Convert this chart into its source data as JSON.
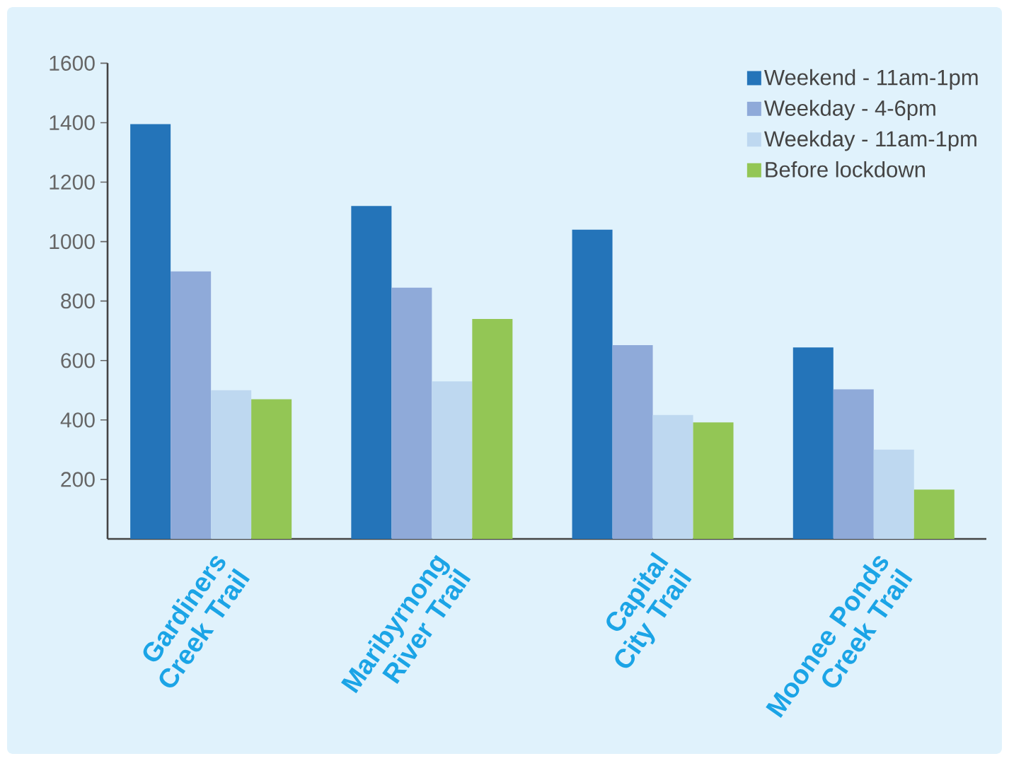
{
  "chart_data": {
    "type": "bar",
    "categories": [
      "Gardiners Creek Trail",
      "Maribyrnong River Trail",
      "Capital City Trail",
      "Moonee Ponds Creek Trail"
    ],
    "series": [
      {
        "name": "Weekend - 11am-1pm",
        "color": "#2474b9",
        "values": [
          1395,
          1120,
          1040,
          644
        ]
      },
      {
        "name": "Weekday - 4-6pm",
        "color": "#8faad9",
        "values": [
          900,
          845,
          652,
          503
        ]
      },
      {
        "name": "Weekday - 11am-1pm",
        "color": "#bed8f0",
        "values": [
          500,
          530,
          417,
          300
        ]
      },
      {
        "name": "Before lockdown",
        "color": "#93c655",
        "values": [
          470,
          740,
          392,
          166
        ]
      }
    ],
    "ylim": [
      0,
      1600
    ],
    "yticks": [
      200,
      400,
      600,
      800,
      1000,
      1200,
      1400,
      1600
    ],
    "legend": "top right"
  }
}
